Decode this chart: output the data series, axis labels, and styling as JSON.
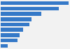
{
  "values": [
    3200,
    2750,
    1900,
    1450,
    1350,
    1050,
    900,
    780,
    330
  ],
  "bar_color": "#3579c8",
  "background_color": "#f2f2f2",
  "figsize": [
    1.0,
    0.71
  ],
  "dpi": 100,
  "bar_height": 0.72,
  "xlim_max_factor": 1.0
}
